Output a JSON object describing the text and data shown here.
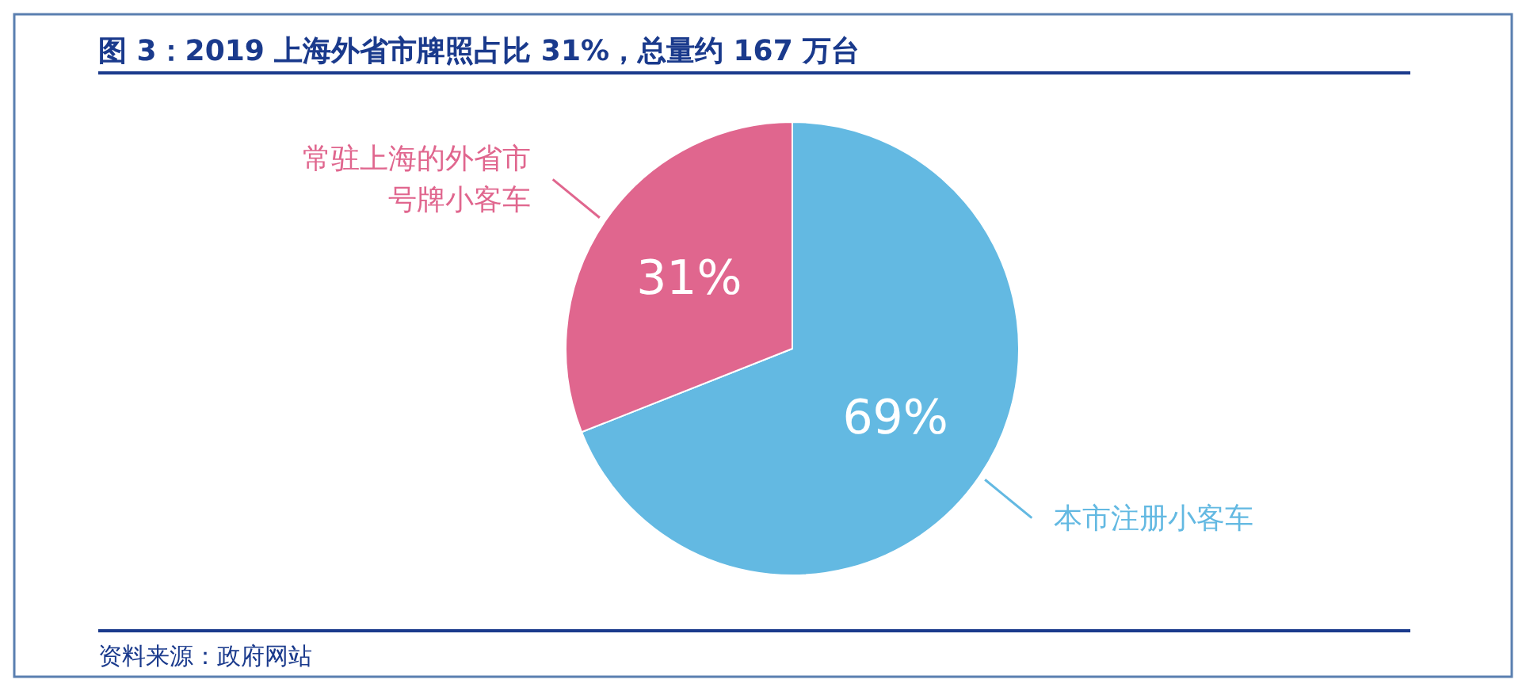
{
  "chart_data": {
    "type": "pie",
    "title": "图 3：2019 上海外省市牌照占比 31%，总量约 167 万台",
    "categories": [
      "本市注册小客车",
      "常驻上海的外省市号牌小客车"
    ],
    "values": [
      69,
      31
    ],
    "colors": [
      "#63b9e2",
      "#e0668e"
    ],
    "value_labels": [
      "69%",
      "31%"
    ],
    "annotations": [
      "资料来源：政府网站"
    ]
  }
}
